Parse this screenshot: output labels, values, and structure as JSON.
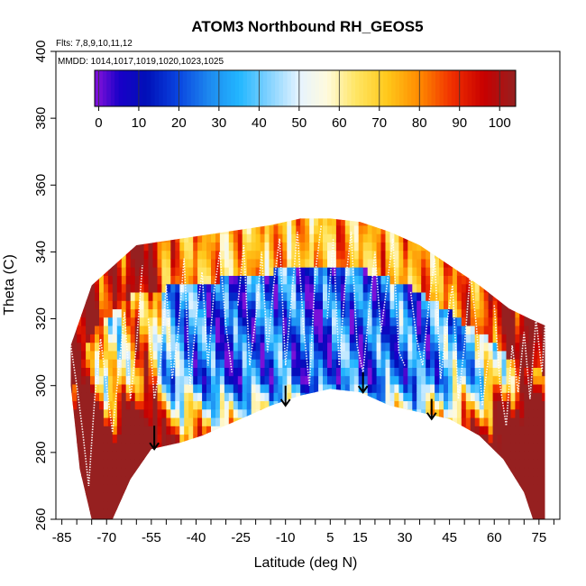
{
  "chart_data": {
    "type": "heatmap",
    "title": "ATOM3 Northbound RH_GEOS5",
    "flights_note": "Flts: 7,8,9,10,11,12",
    "mmdd_note": "MMDD: 1014,1017,1019,1020,1023,1025",
    "xlabel": "Latitude (deg N)",
    "ylabel": "Theta (C)",
    "xlim": [
      -87,
      82
    ],
    "ylim": [
      260,
      400
    ],
    "x_tick_values": [
      -85,
      -70,
      -55,
      -40,
      -25,
      -10,
      5,
      15,
      30,
      45,
      60,
      75
    ],
    "x_tick_labels": [
      "-85",
      "-70",
      "-55",
      "-40",
      "-25",
      "-10",
      "5",
      "15",
      "30",
      "45",
      "60",
      "75"
    ],
    "x_minor_ticks": [
      -85,
      -80,
      -75,
      -70,
      -65,
      -60,
      -55,
      -50,
      -45,
      -40,
      -35,
      -30,
      -25,
      -20,
      -15,
      -10,
      -5,
      0,
      5,
      10,
      15,
      20,
      25,
      30,
      35,
      40,
      45,
      50,
      55,
      60,
      65,
      70,
      75,
      80
    ],
    "y_tick_values": [
      260,
      280,
      300,
      320,
      340,
      360,
      380,
      400
    ],
    "y_tick_labels": [
      "260",
      "280",
      "300",
      "320",
      "340",
      "360",
      "380",
      "400"
    ],
    "colorbar": {
      "range": [
        -1,
        104
      ],
      "tick_values": [
        0,
        10,
        20,
        30,
        40,
        50,
        60,
        70,
        80,
        90,
        100
      ],
      "tick_labels": [
        "0",
        "10",
        "20",
        "30",
        "40",
        "50",
        "60",
        "70",
        "80",
        "90",
        "100"
      ],
      "color_stops": [
        {
          "value": 0,
          "color": "#7a10d8"
        },
        {
          "value": 5,
          "color": "#1a00c8"
        },
        {
          "value": 12,
          "color": "#0010b8"
        },
        {
          "value": 20,
          "color": "#0a46e0"
        },
        {
          "value": 28,
          "color": "#1e8cf0"
        },
        {
          "value": 35,
          "color": "#22b6ff"
        },
        {
          "value": 42,
          "color": "#7cd0ff"
        },
        {
          "value": 50,
          "color": "#e6f4ff"
        },
        {
          "value": 57,
          "color": "#fffadc"
        },
        {
          "value": 64,
          "color": "#ffe666"
        },
        {
          "value": 72,
          "color": "#ffc81a"
        },
        {
          "value": 80,
          "color": "#ff8a00"
        },
        {
          "value": 88,
          "color": "#f03000"
        },
        {
          "value": 96,
          "color": "#c80000"
        },
        {
          "value": 104,
          "color": "#962020"
        }
      ]
    },
    "boundary_top": [
      [
        -82,
        312
      ],
      [
        -75,
        330
      ],
      [
        -60,
        342
      ],
      [
        -45,
        344
      ],
      [
        -30,
        346
      ],
      [
        -15,
        348
      ],
      [
        -5,
        350
      ],
      [
        5,
        350
      ],
      [
        15,
        349
      ],
      [
        25,
        346
      ],
      [
        35,
        342
      ],
      [
        45,
        336
      ],
      [
        55,
        330
      ],
      [
        65,
        323
      ],
      [
        72,
        320
      ],
      [
        77,
        318
      ]
    ],
    "boundary_bottom": [
      [
        -82,
        300
      ],
      [
        -79,
        275
      ],
      [
        -75,
        260
      ],
      [
        -68,
        260
      ],
      [
        -62,
        272
      ],
      [
        -55,
        281
      ],
      [
        -45,
        283
      ],
      [
        -38,
        285
      ],
      [
        -25,
        290
      ],
      [
        -15,
        294
      ],
      [
        -5,
        297
      ],
      [
        5,
        299
      ],
      [
        15,
        298
      ],
      [
        25,
        294
      ],
      [
        35,
        292
      ],
      [
        45,
        290
      ],
      [
        55,
        285
      ],
      [
        63,
        278
      ],
      [
        70,
        268
      ],
      [
        73,
        260
      ],
      [
        77,
        260
      ],
      [
        77,
        300
      ]
    ],
    "rh_profile": [
      [
        -82,
        88
      ],
      [
        -76,
        92
      ],
      [
        -70,
        55
      ],
      [
        -65,
        60
      ],
      [
        -60,
        82
      ],
      [
        -55,
        78
      ],
      [
        -50,
        35
      ],
      [
        -45,
        32
      ],
      [
        -40,
        28
      ],
      [
        -35,
        22
      ],
      [
        -30,
        18
      ],
      [
        -25,
        20
      ],
      [
        -20,
        25
      ],
      [
        -15,
        22
      ],
      [
        -10,
        28
      ],
      [
        -5,
        20
      ],
      [
        0,
        15
      ],
      [
        5,
        22
      ],
      [
        10,
        30
      ],
      [
        15,
        18
      ],
      [
        20,
        22
      ],
      [
        25,
        25
      ],
      [
        30,
        28
      ],
      [
        35,
        22
      ],
      [
        40,
        30
      ],
      [
        45,
        35
      ],
      [
        50,
        40
      ],
      [
        55,
        42
      ],
      [
        60,
        60
      ],
      [
        65,
        70
      ],
      [
        70,
        88
      ],
      [
        77,
        92
      ]
    ],
    "series": [
      {
        "name": "flight track 7",
        "x": [
          -82,
          -80,
          -78,
          -76,
          -74,
          -72,
          -70,
          -68,
          -66,
          -64,
          -62,
          -60,
          -58
        ],
        "y": [
          312,
          300,
          286,
          270,
          296,
          314,
          300,
          286,
          304,
          322,
          296,
          312,
          336
        ]
      },
      {
        "name": "flight track 8",
        "x": [
          -56,
          -54,
          -52,
          -50,
          -48,
          -46,
          -44,
          -42,
          -40,
          -38,
          -36,
          -34,
          -32,
          -30,
          -28
        ],
        "y": [
          320,
          296,
          306,
          330,
          302,
          316,
          338,
          300,
          320,
          334,
          306,
          328,
          340,
          318,
          304
        ]
      },
      {
        "name": "flight track 9",
        "x": [
          -26,
          -24,
          -22,
          -20,
          -18,
          -16,
          -14,
          -12,
          -10,
          -8,
          -6,
          -4,
          -2,
          0,
          2
        ],
        "y": [
          324,
          342,
          306,
          320,
          340,
          310,
          330,
          344,
          306,
          326,
          346,
          318,
          300,
          334,
          348
        ]
      },
      {
        "name": "flight track 10",
        "x": [
          4,
          6,
          8,
          10,
          12,
          14,
          16,
          18,
          20,
          22,
          24,
          26,
          28,
          30
        ],
        "y": [
          320,
          344,
          306,
          330,
          346,
          312,
          304,
          322,
          340,
          316,
          330,
          344,
          310,
          306
        ]
      },
      {
        "name": "flight track 11",
        "x": [
          32,
          34,
          36,
          38,
          40,
          42,
          44,
          46,
          48,
          50,
          52,
          54,
          56,
          58
        ],
        "y": [
          328,
          314,
          306,
          324,
          338,
          302,
          318,
          330,
          296,
          312,
          334,
          318,
          294,
          308
        ]
      },
      {
        "name": "flight track 12",
        "x": [
          60,
          62,
          64,
          66,
          68,
          70,
          72,
          74,
          76,
          77
        ],
        "y": [
          324,
          300,
          288,
          312,
          298,
          316,
          296,
          320,
          304,
          318
        ]
      }
    ],
    "arrows": [
      {
        "x": -54,
        "y_start": 288,
        "y_end": 281
      },
      {
        "x": -10,
        "y_start": 300,
        "y_end": 294
      },
      {
        "x": 16,
        "y_start": 304,
        "y_end": 298
      },
      {
        "x": 39,
        "y_start": 296,
        "y_end": 290
      }
    ]
  }
}
